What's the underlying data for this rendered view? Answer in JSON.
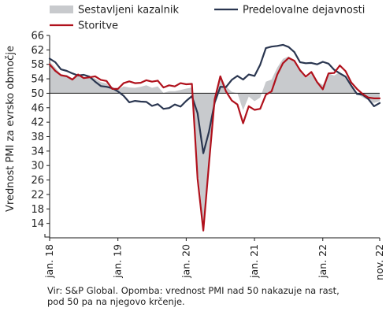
{
  "chart_data": {
    "type": "line",
    "title": "",
    "ylabel": "Vrednost PMI za evrsko območje",
    "xlabel": "",
    "ylim": [
      10,
      66
    ],
    "y_ticks": [
      14,
      18,
      22,
      26,
      30,
      34,
      38,
      42,
      46,
      50,
      54,
      58,
      62,
      66
    ],
    "x_range": [
      "2018-01",
      "2022-11"
    ],
    "x_ticks": [
      {
        "x": "2018-01",
        "label": "jan. 18"
      },
      {
        "x": "2019-01",
        "label": "jan. 19"
      },
      {
        "x": "2020-01",
        "label": "jan. 20"
      },
      {
        "x": "2021-01",
        "label": "jan. 21"
      },
      {
        "x": "2022-01",
        "label": "jan. 22"
      },
      {
        "x": "2022-11",
        "label": "nov. 22"
      }
    ],
    "reference_line": 50,
    "grid": false,
    "legend_position": "top",
    "x": [
      "2018-01",
      "2018-02",
      "2018-03",
      "2018-04",
      "2018-05",
      "2018-06",
      "2018-07",
      "2018-08",
      "2018-09",
      "2018-10",
      "2018-11",
      "2018-12",
      "2019-01",
      "2019-02",
      "2019-03",
      "2019-04",
      "2019-05",
      "2019-06",
      "2019-07",
      "2019-08",
      "2019-09",
      "2019-10",
      "2019-11",
      "2019-12",
      "2020-01",
      "2020-02",
      "2020-03",
      "2020-04",
      "2020-05",
      "2020-06",
      "2020-07",
      "2020-08",
      "2020-09",
      "2020-10",
      "2020-11",
      "2020-12",
      "2021-01",
      "2021-02",
      "2021-03",
      "2021-04",
      "2021-05",
      "2021-06",
      "2021-07",
      "2021-08",
      "2021-09",
      "2021-10",
      "2021-11",
      "2021-12",
      "2022-01",
      "2022-02",
      "2022-03",
      "2022-04",
      "2022-05",
      "2022-06",
      "2022-07",
      "2022-08",
      "2022-09",
      "2022-10",
      "2022-11"
    ],
    "series": [
      {
        "name": "Sestavljeni kazalnik",
        "style": "area",
        "color": "#c8cacd",
        "values": [
          58.8,
          57.1,
          55.2,
          55.1,
          54.1,
          54.9,
          54.3,
          54.5,
          54.1,
          53.1,
          52.7,
          51.1,
          51.0,
          51.9,
          51.6,
          51.5,
          51.8,
          52.2,
          51.5,
          51.9,
          50.1,
          50.6,
          50.6,
          50.9,
          51.3,
          51.6,
          29.7,
          13.6,
          31.9,
          48.5,
          54.9,
          51.9,
          50.4,
          50.0,
          45.3,
          49.1,
          47.8,
          48.8,
          53.2,
          53.8,
          57.1,
          59.5,
          60.2,
          59.0,
          56.2,
          54.2,
          55.4,
          53.3,
          52.3,
          55.5,
          54.9,
          55.8,
          54.8,
          52.0,
          49.9,
          48.9,
          48.1,
          47.3,
          47.8
        ]
      },
      {
        "name": "Predelovalne dejavnosti",
        "style": "line",
        "color": "#2a3650",
        "values": [
          59.6,
          58.6,
          56.6,
          56.2,
          55.5,
          54.9,
          55.1,
          54.6,
          53.2,
          52.0,
          51.8,
          51.4,
          50.5,
          49.3,
          47.5,
          47.9,
          47.7,
          47.6,
          46.5,
          47.0,
          45.7,
          45.9,
          46.9,
          46.3,
          47.9,
          49.2,
          44.5,
          33.4,
          39.4,
          47.4,
          51.8,
          51.7,
          53.7,
          54.8,
          53.8,
          55.2,
          54.8,
          57.9,
          62.5,
          62.9,
          63.1,
          63.4,
          62.8,
          61.4,
          58.6,
          58.3,
          58.4,
          58.0,
          58.7,
          58.2,
          56.5,
          55.5,
          54.6,
          52.1,
          49.8,
          49.6,
          48.4,
          46.4,
          47.3
        ]
      },
      {
        "name": "Storitve",
        "style": "line",
        "color": "#b0111c",
        "values": [
          58.0,
          56.2,
          55.0,
          54.7,
          53.8,
          55.2,
          54.2,
          54.4,
          54.7,
          53.7,
          53.4,
          51.2,
          51.2,
          52.8,
          53.3,
          52.8,
          52.9,
          53.6,
          53.2,
          53.5,
          51.6,
          52.2,
          51.9,
          52.8,
          52.5,
          52.6,
          26.4,
          12.0,
          30.5,
          48.3,
          54.7,
          50.5,
          48.0,
          46.9,
          41.7,
          46.4,
          45.4,
          45.7,
          49.6,
          50.5,
          55.2,
          58.3,
          59.8,
          59.0,
          56.4,
          54.6,
          55.9,
          53.1,
          51.1,
          55.5,
          55.6,
          57.7,
          56.1,
          53.0,
          51.2,
          49.8,
          48.8,
          48.6,
          48.6
        ]
      }
    ],
    "legend": [
      {
        "label": "Sestavljeni kazalnik",
        "kind": "area",
        "color": "#c8cacd"
      },
      {
        "label": "Predelovalne dejavnosti",
        "kind": "line",
        "color": "#2a3650"
      },
      {
        "label": "Storitve",
        "kind": "line",
        "color": "#b0111c"
      }
    ]
  },
  "note": {
    "line1": "Vir: S&P Global. Opomba: vrednost PMI nad 50 nakazuje na rast,",
    "line2": "pod 50 pa na njegovo krčenje."
  }
}
